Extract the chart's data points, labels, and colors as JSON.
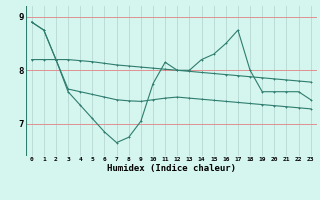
{
  "xlabel": "Humidex (Indice chaleur)",
  "x_values": [
    0,
    1,
    2,
    3,
    4,
    5,
    6,
    7,
    8,
    9,
    10,
    11,
    12,
    13,
    14,
    15,
    16,
    17,
    18,
    19,
    20,
    21,
    22,
    23
  ],
  "line1_y": [
    8.9,
    8.75,
    8.2,
    8.2,
    8.18,
    8.16,
    8.13,
    8.1,
    8.08,
    8.06,
    8.04,
    8.02,
    8.0,
    7.98,
    7.96,
    7.94,
    7.92,
    7.9,
    7.88,
    7.86,
    7.84,
    7.82,
    7.8,
    7.78
  ],
  "line2_y": [
    8.9,
    8.75,
    8.2,
    7.6,
    7.35,
    7.1,
    6.85,
    6.65,
    6.75,
    7.05,
    7.75,
    8.15,
    8.0,
    8.0,
    8.2,
    8.3,
    8.5,
    8.75,
    8.0,
    7.6,
    7.6,
    7.6,
    7.6,
    7.45
  ],
  "line3_y": [
    8.2,
    8.2,
    8.2,
    7.65,
    7.6,
    7.55,
    7.5,
    7.45,
    7.43,
    7.42,
    7.45,
    7.48,
    7.5,
    7.48,
    7.46,
    7.44,
    7.42,
    7.4,
    7.38,
    7.36,
    7.34,
    7.32,
    7.3,
    7.28
  ],
  "line_color": "#2e7d6e",
  "background_color": "#d5f5ef",
  "grid_color_v": "#b8d8d4",
  "grid_color_h": "#e09090",
  "ylim": [
    6.4,
    9.2
  ],
  "yticks": [
    7,
    8,
    9
  ],
  "xlim": [
    -0.5,
    23.5
  ]
}
